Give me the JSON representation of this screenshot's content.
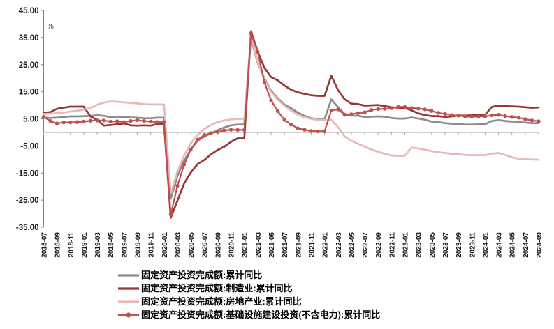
{
  "chart": {
    "unit_label": "%",
    "axis_color": "#808080",
    "zero_line_color": "#a6a6a6",
    "tick_label_color": "#1a1a1a"
  },
  "chart_data": {
    "type": "line",
    "title": "",
    "xlabel": "",
    "ylabel": "%",
    "ylim": [
      -35,
      45
    ],
    "y_ticks": [
      {
        "value": 45,
        "label": "45.00"
      },
      {
        "value": 35,
        "label": "35.00"
      },
      {
        "value": 25,
        "label": "25.00"
      },
      {
        "value": 15,
        "label": "15.00"
      },
      {
        "value": 5,
        "label": "5.00"
      },
      {
        "value": -5,
        "label": "-5.00"
      },
      {
        "value": -15,
        "label": "-15.00"
      },
      {
        "value": -25,
        "label": "-25.00"
      },
      {
        "value": -35,
        "label": "-35.00"
      }
    ],
    "grid": "zero-line-only",
    "legend_position": "bottom-left",
    "x_label_every": 2,
    "x": [
      "2018-07",
      "2018-08",
      "2018-09",
      "2018-10",
      "2018-11",
      "2018-12",
      "2019-01",
      "2019-02",
      "2019-03",
      "2019-04",
      "2019-05",
      "2019-06",
      "2019-07",
      "2019-08",
      "2019-09",
      "2019-10",
      "2019-11",
      "2019-12",
      "2020-01",
      "2020-02",
      "2020-03",
      "2020-04",
      "2020-05",
      "2020-06",
      "2020-07",
      "2020-08",
      "2020-09",
      "2020-10",
      "2020-11",
      "2020-12",
      "2021-01",
      "2021-02",
      "2021-03",
      "2021-04",
      "2021-05",
      "2021-06",
      "2021-07",
      "2021-08",
      "2021-09",
      "2021-10",
      "2021-11",
      "2021-12",
      "2022-01",
      "2022-02",
      "2022-03",
      "2022-04",
      "2022-05",
      "2022-06",
      "2022-07",
      "2022-08",
      "2022-09",
      "2022-10",
      "2022-11",
      "2022-12",
      "2023-01",
      "2023-02",
      "2023-03",
      "2023-04",
      "2023-05",
      "2023-06",
      "2023-07",
      "2023-08",
      "2023-09",
      "2023-10",
      "2023-11",
      "2023-12",
      "2024-01",
      "2024-02",
      "2024-03",
      "2024-04",
      "2024-05",
      "2024-06",
      "2024-07",
      "2024-08",
      "2024-09"
    ],
    "x_tick_labels": [
      "2018-07",
      "2018-09",
      "2018-11",
      "2019-01",
      "2019-03",
      "2019-05",
      "2019-07",
      "2019-09",
      "2019-11",
      "2020-01",
      "2020-03",
      "2020-05",
      "2020-07",
      "2020-09",
      "2020-11",
      "2021-01",
      "2021-03",
      "2021-05",
      "2021-07",
      "2021-09",
      "2021-11",
      "2022-01",
      "2022-03",
      "2022-05",
      "2022-07",
      "2022-09",
      "2022-11",
      "2023-01",
      "2023-03",
      "2023-05",
      "2023-07",
      "2023-09",
      "2023-11",
      "2024-01",
      "2024-03",
      "2024-05",
      "2024-07",
      "2024-09"
    ],
    "series": [
      {
        "name": "固定资产投资完成额:累计同比",
        "color": "#8c8c8c",
        "marker": false,
        "values": [
          5.5,
          5.3,
          5.4,
          5.7,
          5.9,
          5.9,
          6.0,
          6.1,
          6.3,
          6.1,
          5.6,
          5.8,
          5.7,
          5.5,
          5.4,
          5.2,
          5.2,
          5.4,
          5.4,
          -24.5,
          -16.1,
          -10.3,
          -6.3,
          -3.1,
          -1.6,
          -0.3,
          0.8,
          1.8,
          2.6,
          2.9,
          2.9,
          35.0,
          25.6,
          19.9,
          15.4,
          12.6,
          10.3,
          8.9,
          7.3,
          6.1,
          5.2,
          4.9,
          4.9,
          12.2,
          9.3,
          6.8,
          6.2,
          6.1,
          5.7,
          5.8,
          5.9,
          5.8,
          5.3,
          5.1,
          5.1,
          5.5,
          5.1,
          4.7,
          4.0,
          3.8,
          3.4,
          3.2,
          3.1,
          2.9,
          2.9,
          3.0,
          3.0,
          4.2,
          4.5,
          4.2,
          4.0,
          3.9,
          3.6,
          3.4,
          3.4
        ]
      },
      {
        "name": "固定资产投资完成额:制造业:累计同比",
        "color": "#953735",
        "marker": false,
        "values": [
          7.3,
          7.5,
          8.7,
          9.1,
          9.5,
          9.5,
          9.5,
          5.9,
          4.6,
          2.5,
          2.7,
          3.0,
          3.3,
          2.6,
          2.5,
          2.6,
          2.5,
          3.1,
          3.1,
          -31.5,
          -25.2,
          -18.8,
          -14.8,
          -11.7,
          -10.2,
          -8.1,
          -6.5,
          -5.3,
          -3.5,
          -2.2,
          -2.2,
          37.3,
          29.8,
          23.8,
          20.4,
          19.2,
          17.3,
          15.7,
          14.8,
          14.2,
          13.7,
          13.5,
          13.5,
          20.9,
          15.6,
          12.2,
          10.6,
          10.4,
          9.9,
          10.0,
          10.1,
          9.7,
          9.3,
          9.1,
          9.1,
          8.1,
          7.0,
          6.4,
          6.0,
          6.0,
          5.7,
          5.9,
          6.2,
          6.2,
          6.3,
          6.5,
          6.5,
          9.4,
          9.9,
          9.7,
          9.6,
          9.5,
          9.3,
          9.1,
          9.2
        ]
      },
      {
        "name": "固定资产投资完成额:房地产业:累计同比",
        "color": "#e6b9b8",
        "marker": false,
        "values": [
          6.8,
          6.9,
          7.1,
          7.3,
          7.7,
          8.0,
          8.4,
          9.0,
          10.2,
          11.0,
          11.4,
          11.3,
          11.1,
          10.9,
          10.7,
          10.4,
          10.3,
          10.3,
          10.3,
          -22.5,
          -14.5,
          -8.5,
          -4.0,
          -1.0,
          1.2,
          2.8,
          3.8,
          4.4,
          4.8,
          5.0,
          5.0,
          36.0,
          26.0,
          19.5,
          15.0,
          12.0,
          9.8,
          8.0,
          6.6,
          5.6,
          5.0,
          4.6,
          4.6,
          4.7,
          2.0,
          -1.5,
          -3.0,
          -4.2,
          -5.3,
          -6.3,
          -7.2,
          -7.9,
          -8.5,
          -8.6,
          -8.6,
          -5.6,
          -5.9,
          -6.4,
          -6.9,
          -7.3,
          -7.6,
          -7.9,
          -8.1,
          -8.3,
          -8.4,
          -8.4,
          -8.4,
          -7.8,
          -7.6,
          -8.3,
          -9.2,
          -9.7,
          -9.9,
          -10.0,
          -10.1
        ]
      },
      {
        "name": "固定资产投资完成额:基础设施建设投资(不含电力):累计同比",
        "color": "#c0504d",
        "marker": true,
        "values": [
          5.7,
          4.2,
          3.3,
          3.7,
          3.7,
          3.8,
          4.0,
          4.3,
          4.4,
          4.4,
          4.0,
          4.1,
          3.8,
          4.2,
          4.5,
          4.2,
          4.0,
          3.8,
          3.8,
          -30.3,
          -19.7,
          -11.8,
          -6.3,
          -2.7,
          -1.0,
          -0.3,
          0.2,
          0.7,
          1.0,
          0.9,
          0.9,
          36.6,
          29.7,
          18.4,
          11.8,
          7.8,
          4.6,
          2.9,
          1.5,
          1.0,
          0.5,
          0.4,
          0.4,
          8.1,
          8.5,
          6.5,
          6.7,
          7.1,
          7.4,
          8.3,
          8.6,
          8.7,
          8.9,
          9.4,
          9.4,
          9.0,
          8.8,
          8.5,
          7.9,
          7.2,
          6.8,
          6.4,
          6.2,
          5.9,
          5.8,
          5.9,
          5.9,
          6.3,
          6.5,
          6.0,
          5.7,
          5.4,
          4.9,
          4.4,
          4.1
        ]
      }
    ]
  }
}
